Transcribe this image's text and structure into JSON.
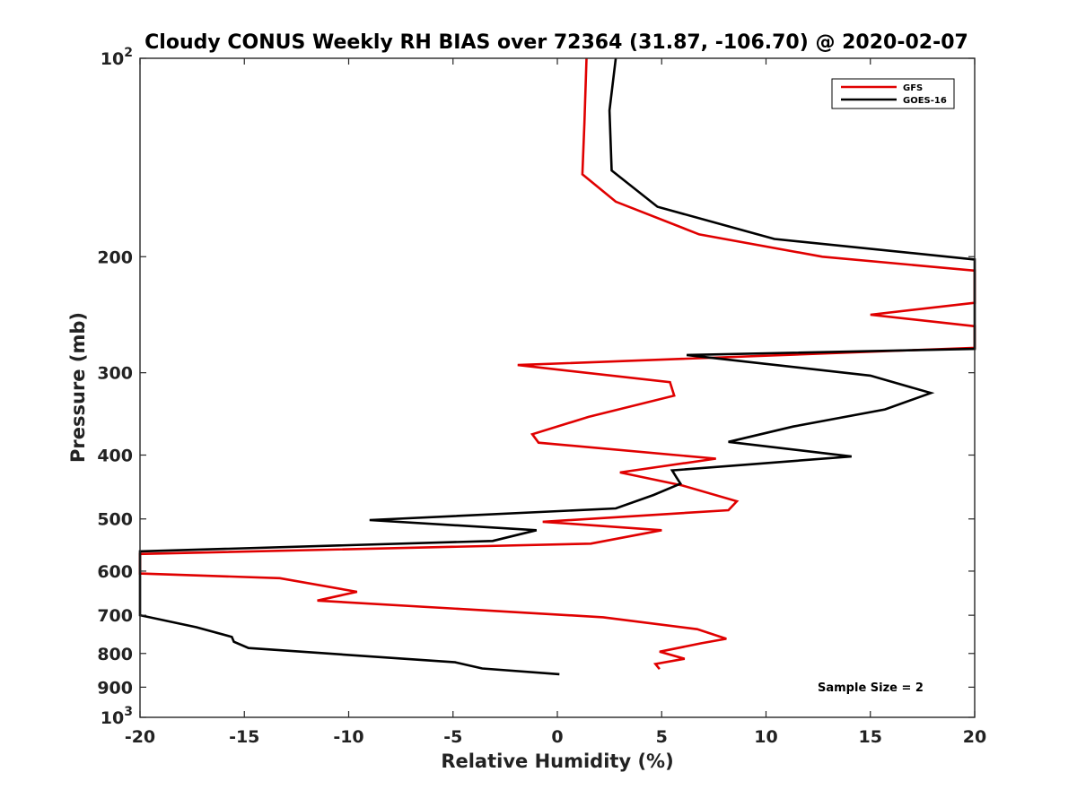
{
  "chart_data": {
    "type": "line",
    "title": "Cloudy CONUS Weekly RH BIAS over 72364 (31.87, -106.70) @ 2020-02-07",
    "xlabel": "Relative Humidity (%)",
    "ylabel": "Pressure (mb)",
    "xlim": [
      -20,
      20
    ],
    "ylim": [
      100,
      1000
    ],
    "y_scale": "log",
    "y_reversed": true,
    "xticks": [
      -20,
      -15,
      -10,
      -5,
      0,
      5,
      10,
      15,
      20
    ],
    "xtick_labels": [
      "-20",
      "-15",
      "-10",
      "-5",
      "0",
      "5",
      "10",
      "15",
      "20"
    ],
    "yticks": [
      {
        "value": 100,
        "label": "10",
        "sup": "2"
      },
      {
        "value": 200,
        "label": "200",
        "sup": ""
      },
      {
        "value": 300,
        "label": "300",
        "sup": ""
      },
      {
        "value": 400,
        "label": "400",
        "sup": ""
      },
      {
        "value": 500,
        "label": "500",
        "sup": ""
      },
      {
        "value": 600,
        "label": "600",
        "sup": ""
      },
      {
        "value": 700,
        "label": "700",
        "sup": ""
      },
      {
        "value": 800,
        "label": "800",
        "sup": ""
      },
      {
        "value": 900,
        "label": "900",
        "sup": ""
      },
      {
        "value": 1000,
        "label": "10",
        "sup": "3"
      }
    ],
    "grid": false,
    "legend_position": "top-right",
    "annotation": "Sample Size = 2",
    "series": [
      {
        "name": "GFS",
        "color": "#e00000",
        "points": [
          [
            1.4,
            100
          ],
          [
            1.3,
            125
          ],
          [
            1.2,
            150
          ],
          [
            2.8,
            165
          ],
          [
            6.8,
            185
          ],
          [
            12.7,
            200
          ],
          [
            20,
            210
          ],
          [
            20,
            235
          ],
          [
            15,
            245
          ],
          [
            20,
            255
          ],
          [
            20,
            275
          ],
          [
            -1.9,
            292
          ],
          [
            5.4,
            310
          ],
          [
            5.6,
            325
          ],
          [
            1.5,
            350
          ],
          [
            -1.2,
            372
          ],
          [
            -0.9,
            383
          ],
          [
            7.6,
            405
          ],
          [
            3.0,
            425
          ],
          [
            6.0,
            445
          ],
          [
            8.6,
            470
          ],
          [
            8.2,
            485
          ],
          [
            -0.7,
            505
          ],
          [
            5.0,
            520
          ],
          [
            1.6,
            545
          ],
          [
            -20,
            565
          ],
          [
            -20,
            605
          ],
          [
            -13.3,
            615
          ],
          [
            -9.6,
            645
          ],
          [
            -11.5,
            665
          ],
          [
            2.2,
            705
          ],
          [
            6.7,
            735
          ],
          [
            8.1,
            760
          ],
          [
            6.9,
            772
          ],
          [
            4.9,
            795
          ],
          [
            6.1,
            815
          ],
          [
            4.7,
            830
          ],
          [
            4.9,
            845
          ]
        ]
      },
      {
        "name": "GOES-16",
        "color": "#000000",
        "points": [
          [
            2.8,
            100
          ],
          [
            2.5,
            120
          ],
          [
            2.6,
            148
          ],
          [
            4.8,
            168
          ],
          [
            10.4,
            188
          ],
          [
            20,
            202
          ],
          [
            20,
            276
          ],
          [
            6.2,
            282
          ],
          [
            15.0,
            303
          ],
          [
            17.9,
            322
          ],
          [
            15.7,
            341
          ],
          [
            11.3,
            362
          ],
          [
            8.2,
            382
          ],
          [
            14.1,
            402
          ],
          [
            5.5,
            422
          ],
          [
            5.7,
            432
          ],
          [
            5.9,
            442
          ],
          [
            4.6,
            460
          ],
          [
            2.8,
            482
          ],
          [
            -9.0,
            502
          ],
          [
            -1.0,
            520
          ],
          [
            -3.1,
            540
          ],
          [
            -20,
            560
          ],
          [
            -20,
            700
          ],
          [
            -17.3,
            730
          ],
          [
            -15.6,
            755
          ],
          [
            -15.5,
            768
          ],
          [
            -14.8,
            785
          ],
          [
            -4.9,
            825
          ],
          [
            -3.6,
            843
          ],
          [
            0.1,
            860
          ]
        ]
      }
    ]
  }
}
